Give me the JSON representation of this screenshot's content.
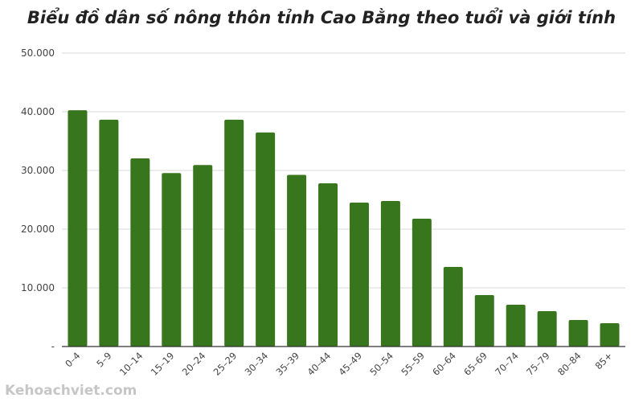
{
  "chart_data": {
    "type": "bar",
    "title": "Biểu đồ dân số nông thôn tỉnh Cao Bằng theo tuổi và giới tính",
    "xlabel": "",
    "ylabel": "",
    "ylim": [
      0,
      50000
    ],
    "yticks": [
      "-",
      "10.000",
      "20.000",
      "30.000",
      "40.000",
      "50.000"
    ],
    "grid": true,
    "color": "#38761d",
    "categories": [
      "0–4",
      "5–9",
      "10–14",
      "15–19",
      "20–24",
      "25–29",
      "30–34",
      "35–39",
      "40–44",
      "45–49",
      "50–54",
      "55–59",
      "60–64",
      "65–69",
      "70–74",
      "75–79",
      "80–84",
      "85+"
    ],
    "values": [
      40250,
      38650,
      32060,
      29560,
      30930,
      38650,
      36470,
      29240,
      27800,
      24520,
      24800,
      21780,
      13560,
      8770,
      7120,
      6030,
      4520,
      3970
    ]
  },
  "watermark": "Kehoachviet.com"
}
